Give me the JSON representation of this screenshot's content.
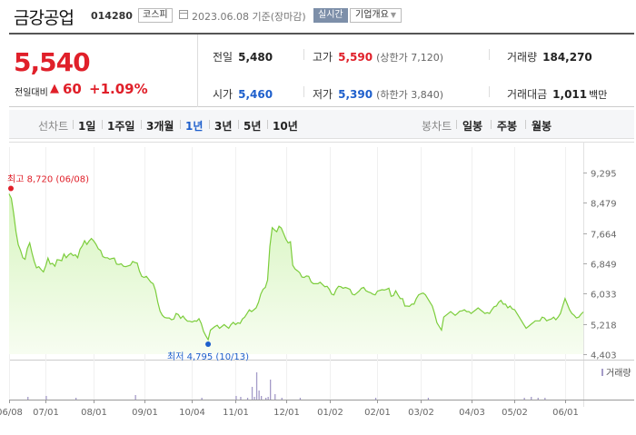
{
  "header": {
    "name": "금강공업",
    "code": "014280",
    "market": "코스피",
    "date": "2023.06.08 기준(장마감)",
    "realtime": "실시간",
    "company_info": "기업개요"
  },
  "summary": {
    "price": "5,540",
    "change_label": "전일대비",
    "change_value": "60",
    "change_pct": "+1.09%",
    "prev_label": "전일",
    "prev_value": "5,480",
    "high_label": "고가",
    "high_value": "5,590",
    "upper_limit": "(상한가 7,120)",
    "volume_label": "거래량",
    "volume_value": "184,270",
    "open_label": "시가",
    "open_value": "5,460",
    "low_label": "저가",
    "low_value": "5,390",
    "lower_limit": "(하한가 3,840)",
    "amount_label": "거래대금",
    "amount_value": "1,011",
    "amount_unit": "백만"
  },
  "toolbar": {
    "line_chart_label": "선차트",
    "periods": [
      "1일",
      "1주일",
      "3개월",
      "1년",
      "3년",
      "5년",
      "10년"
    ],
    "selected_period": "1년",
    "candle_chart_label": "봉차트",
    "candle_periods": [
      "일봉",
      "주봉",
      "월봉"
    ]
  },
  "colors": {
    "up": "#e0202a",
    "down": "#1e5fcc",
    "line": "#7ccd3c",
    "area_top": "#d7f5bf",
    "area_bottom": "#f7fdf1",
    "volume": "#a49bc8"
  },
  "chart_data": {
    "type": "area",
    "y_ticks": [
      "9,295",
      "8,479",
      "7,664",
      "6,849",
      "6,033",
      "5,218",
      "4,403"
    ],
    "ylim": [
      4403,
      9295
    ],
    "x_ticks": [
      "06/08",
      "07/01",
      "08/01",
      "09/01",
      "10/04",
      "11/01",
      "12/01",
      "01/02",
      "02/01",
      "03/02",
      "04/03",
      "05/02",
      "06/01"
    ],
    "x_tick_index": [
      0,
      16,
      37,
      59,
      80,
      99,
      121,
      140,
      161,
      180,
      202,
      221,
      243
    ],
    "high_label": "최고 8,720 (06/08)",
    "low_label": "최저 4,795 (10/13)",
    "high_point": {
      "index": 0,
      "value": 8720
    },
    "low_point": {
      "index": 87,
      "value": 4795
    },
    "volume_label": "거래량",
    "series": [
      {
        "values": [
          8720,
          8600,
          8200,
          7700,
          7350,
          7200,
          7000,
          6960,
          7250,
          7400,
          7130,
          6900,
          6730,
          6760,
          6680,
          6620,
          6780,
          6990,
          6830,
          6850,
          6770,
          6950,
          6940,
          6920,
          7100,
          7000,
          7080,
          7120,
          7060,
          7080,
          7000,
          7230,
          7320,
          7460,
          7360,
          7450,
          7520,
          7450,
          7360,
          7240,
          7200,
          7030,
          7000,
          7000,
          6960,
          6980,
          6990,
          6830,
          6820,
          6840,
          6770,
          6760,
          6780,
          6800,
          6900,
          6870,
          6860,
          6640,
          6500,
          6470,
          6500,
          6420,
          6340,
          6300,
          6120,
          5800,
          5560,
          5450,
          5390,
          5380,
          5380,
          5330,
          5350,
          5500,
          5470,
          5370,
          5430,
          5350,
          5290,
          5290,
          5270,
          5300,
          5290,
          5360,
          5230,
          5020,
          4900,
          4795,
          5050,
          5100,
          5150,
          5180,
          5100,
          5150,
          5200,
          5150,
          5100,
          5200,
          5260,
          5200,
          5250,
          5230,
          5350,
          5400,
          5500,
          5600,
          5550,
          5600,
          5650,
          5800,
          6020,
          6150,
          6200,
          6400,
          7300,
          7810,
          7750,
          7700,
          7850,
          7800,
          7650,
          7500,
          7400,
          7430,
          6800,
          6700,
          6650,
          6600,
          6480,
          6470,
          6510,
          6500,
          6350,
          6300,
          6300,
          6300,
          6340,
          6280,
          6220,
          6230,
          6150,
          6020,
          6000,
          6150,
          6230,
          6220,
          6180,
          6200,
          6180,
          6150,
          6020,
          6000,
          6050,
          6100,
          6180,
          6200,
          6110,
          6080,
          6060,
          6020,
          6000,
          6100,
          6120,
          6140,
          6130,
          6150,
          6180,
          5960,
          5980,
          6110,
          6000,
          5900,
          5900,
          5700,
          5700,
          5690,
          5750,
          5750,
          5900,
          6000,
          6030,
          6050,
          6000,
          5900,
          5800,
          5700,
          5500,
          5250,
          5150,
          5050,
          5400,
          5450,
          5500,
          5550,
          5500,
          5450,
          5500,
          5560,
          5570,
          5600,
          5550,
          5550,
          5500,
          5550,
          5600,
          5650,
          5600,
          5550,
          5500,
          5520,
          5500,
          5600,
          5680,
          5700,
          5800,
          5850,
          5750,
          5750,
          5650,
          5700,
          5620,
          5600,
          5500,
          5400,
          5300,
          5200,
          5100,
          5150,
          5200,
          5250,
          5300,
          5300,
          5300,
          5400,
          5380,
          5300,
          5330,
          5350,
          5400,
          5330,
          5400,
          5500,
          5700,
          5900,
          5750,
          5600,
          5500,
          5450,
          5380,
          5400,
          5480,
          5540
        ]
      }
    ]
  }
}
